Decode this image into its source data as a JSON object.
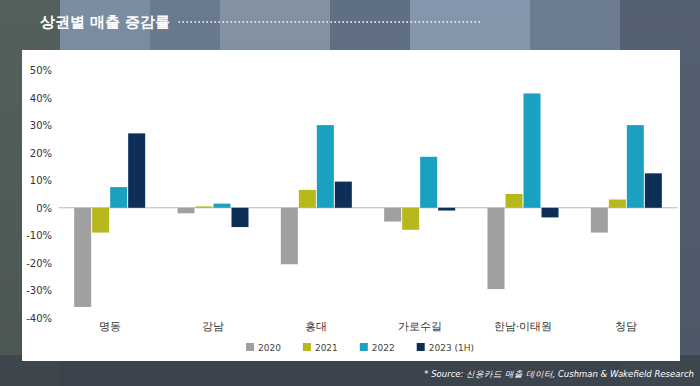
{
  "chart_data": {
    "type": "bar",
    "title": "상권별 매출 증감률",
    "source": "* Source: 신용카드 매출 데이터, Cushman & Wakefield Research",
    "categories": [
      "명동",
      "강남",
      "홍대",
      "가로수길",
      "한남·이태원",
      "청담"
    ],
    "series": [
      {
        "name": "2020",
        "color": "#a0a0a0",
        "values": [
          -36,
          -2,
          -20.5,
          -5,
          -29.5,
          -9
        ]
      },
      {
        "name": "2021",
        "color": "#b6b81c",
        "values": [
          -9,
          0.5,
          6.5,
          -8,
          5,
          3
        ]
      },
      {
        "name": "2022",
        "color": "#1ba1c0",
        "values": [
          7.5,
          1.5,
          30,
          18.5,
          41.5,
          30
        ]
      },
      {
        "name": "2023 (1H)",
        "color": "#0d2e57",
        "values": [
          27,
          -7,
          9.5,
          -1,
          -3.5,
          12.5
        ]
      }
    ],
    "ylim": [
      -40,
      50
    ],
    "yticks": [
      {
        "value": -40,
        "label": "-40%"
      },
      {
        "value": -30,
        "label": "-30%"
      },
      {
        "value": -20,
        "label": "-20%"
      },
      {
        "value": -10,
        "label": "-10%"
      },
      {
        "value": 0,
        "label": "0%"
      },
      {
        "value": 10,
        "label": "10%"
      },
      {
        "value": 20,
        "label": "20%"
      },
      {
        "value": 30,
        "label": "30%"
      },
      {
        "value": 40,
        "label": "40%"
      },
      {
        "value": 50,
        "label": "50%"
      }
    ],
    "grid": false,
    "legend": "bottom"
  }
}
